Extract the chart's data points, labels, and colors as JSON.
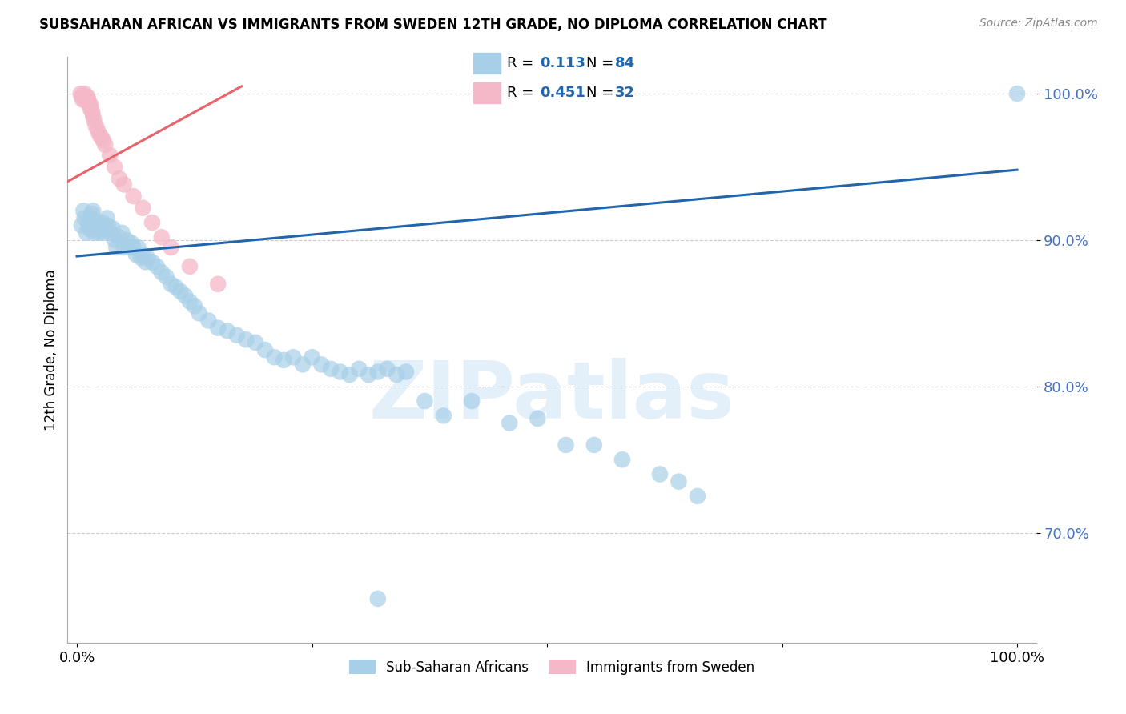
{
  "title": "SUBSAHARAN AFRICAN VS IMMIGRANTS FROM SWEDEN 12TH GRADE, NO DIPLOMA CORRELATION CHART",
  "source": "Source: ZipAtlas.com",
  "ylabel": "12th Grade, No Diploma",
  "blue_label": "Sub-Saharan Africans",
  "pink_label": "Immigrants from Sweden",
  "blue_R": 0.113,
  "blue_N": 84,
  "pink_R": 0.451,
  "pink_N": 32,
  "blue_color": "#a8cfe8",
  "pink_color": "#f4b8c8",
  "blue_line_color": "#2166ac",
  "pink_line_color": "#e8636a",
  "legend_text_color": "#2166ac",
  "ytick_color": "#4472c4",
  "blue_x": [
    0.005,
    0.007,
    0.008,
    0.01,
    0.012,
    0.013,
    0.015,
    0.016,
    0.017,
    0.018,
    0.02,
    0.021,
    0.022,
    0.023,
    0.024,
    0.025,
    0.027,
    0.028,
    0.03,
    0.032,
    0.033,
    0.035,
    0.038,
    0.04,
    0.042,
    0.045,
    0.048,
    0.05,
    0.053,
    0.055,
    0.058,
    0.06,
    0.063,
    0.065,
    0.068,
    0.07,
    0.073,
    0.075,
    0.08,
    0.085,
    0.09,
    0.095,
    0.1,
    0.105,
    0.11,
    0.115,
    0.12,
    0.125,
    0.13,
    0.14,
    0.15,
    0.16,
    0.17,
    0.18,
    0.19,
    0.2,
    0.21,
    0.22,
    0.23,
    0.24,
    0.25,
    0.26,
    0.27,
    0.28,
    0.29,
    0.3,
    0.31,
    0.32,
    0.33,
    0.34,
    0.35,
    0.37,
    0.39,
    0.42,
    0.46,
    0.49,
    0.52,
    0.55,
    0.58,
    0.62,
    0.64,
    0.66,
    0.32,
    1.0
  ],
  "blue_y": [
    0.91,
    0.92,
    0.915,
    0.905,
    0.912,
    0.908,
    0.915,
    0.918,
    0.92,
    0.905,
    0.91,
    0.908,
    0.912,
    0.905,
    0.91,
    0.908,
    0.912,
    0.905,
    0.908,
    0.915,
    0.91,
    0.905,
    0.908,
    0.9,
    0.895,
    0.902,
    0.905,
    0.895,
    0.9,
    0.895,
    0.898,
    0.895,
    0.89,
    0.895,
    0.888,
    0.89,
    0.885,
    0.888,
    0.885,
    0.882,
    0.878,
    0.875,
    0.87,
    0.868,
    0.865,
    0.862,
    0.858,
    0.855,
    0.85,
    0.845,
    0.84,
    0.838,
    0.835,
    0.832,
    0.83,
    0.825,
    0.82,
    0.818,
    0.82,
    0.815,
    0.82,
    0.815,
    0.812,
    0.81,
    0.808,
    0.812,
    0.808,
    0.81,
    0.812,
    0.808,
    0.81,
    0.79,
    0.78,
    0.79,
    0.775,
    0.778,
    0.76,
    0.76,
    0.75,
    0.74,
    0.735,
    0.725,
    0.655,
    1.0
  ],
  "pink_x": [
    0.004,
    0.005,
    0.006,
    0.007,
    0.008,
    0.009,
    0.01,
    0.011,
    0.012,
    0.013,
    0.014,
    0.015,
    0.016,
    0.017,
    0.018,
    0.02,
    0.022,
    0.024,
    0.026,
    0.028,
    0.03,
    0.035,
    0.04,
    0.045,
    0.05,
    0.06,
    0.07,
    0.08,
    0.09,
    0.1,
    0.12,
    0.15
  ],
  "pink_y": [
    1.0,
    0.998,
    0.996,
    0.998,
    1.0,
    0.998,
    0.995,
    0.998,
    0.996,
    0.993,
    0.99,
    0.992,
    0.988,
    0.985,
    0.982,
    0.978,
    0.975,
    0.972,
    0.97,
    0.968,
    0.965,
    0.958,
    0.95,
    0.942,
    0.938,
    0.93,
    0.922,
    0.912,
    0.902,
    0.895,
    0.882,
    0.87
  ],
  "blue_line_x": [
    0.0,
    1.0
  ],
  "blue_line_y": [
    0.889,
    0.948
  ],
  "pink_line_x": [
    -0.01,
    0.175
  ],
  "pink_line_y": [
    0.94,
    1.005
  ],
  "xlim": [
    -0.01,
    1.02
  ],
  "ylim": [
    0.625,
    1.025
  ],
  "yticks": [
    0.7,
    0.8,
    0.9,
    1.0
  ],
  "ytick_labels": [
    "70.0%",
    "80.0%",
    "90.0%",
    "100.0%"
  ],
  "xtick_labels": [
    "0.0%",
    "",
    "",
    "",
    "100.0%"
  ],
  "watermark_text": "ZIPatlas",
  "background_color": "#ffffff",
  "grid_color": "#cccccc"
}
